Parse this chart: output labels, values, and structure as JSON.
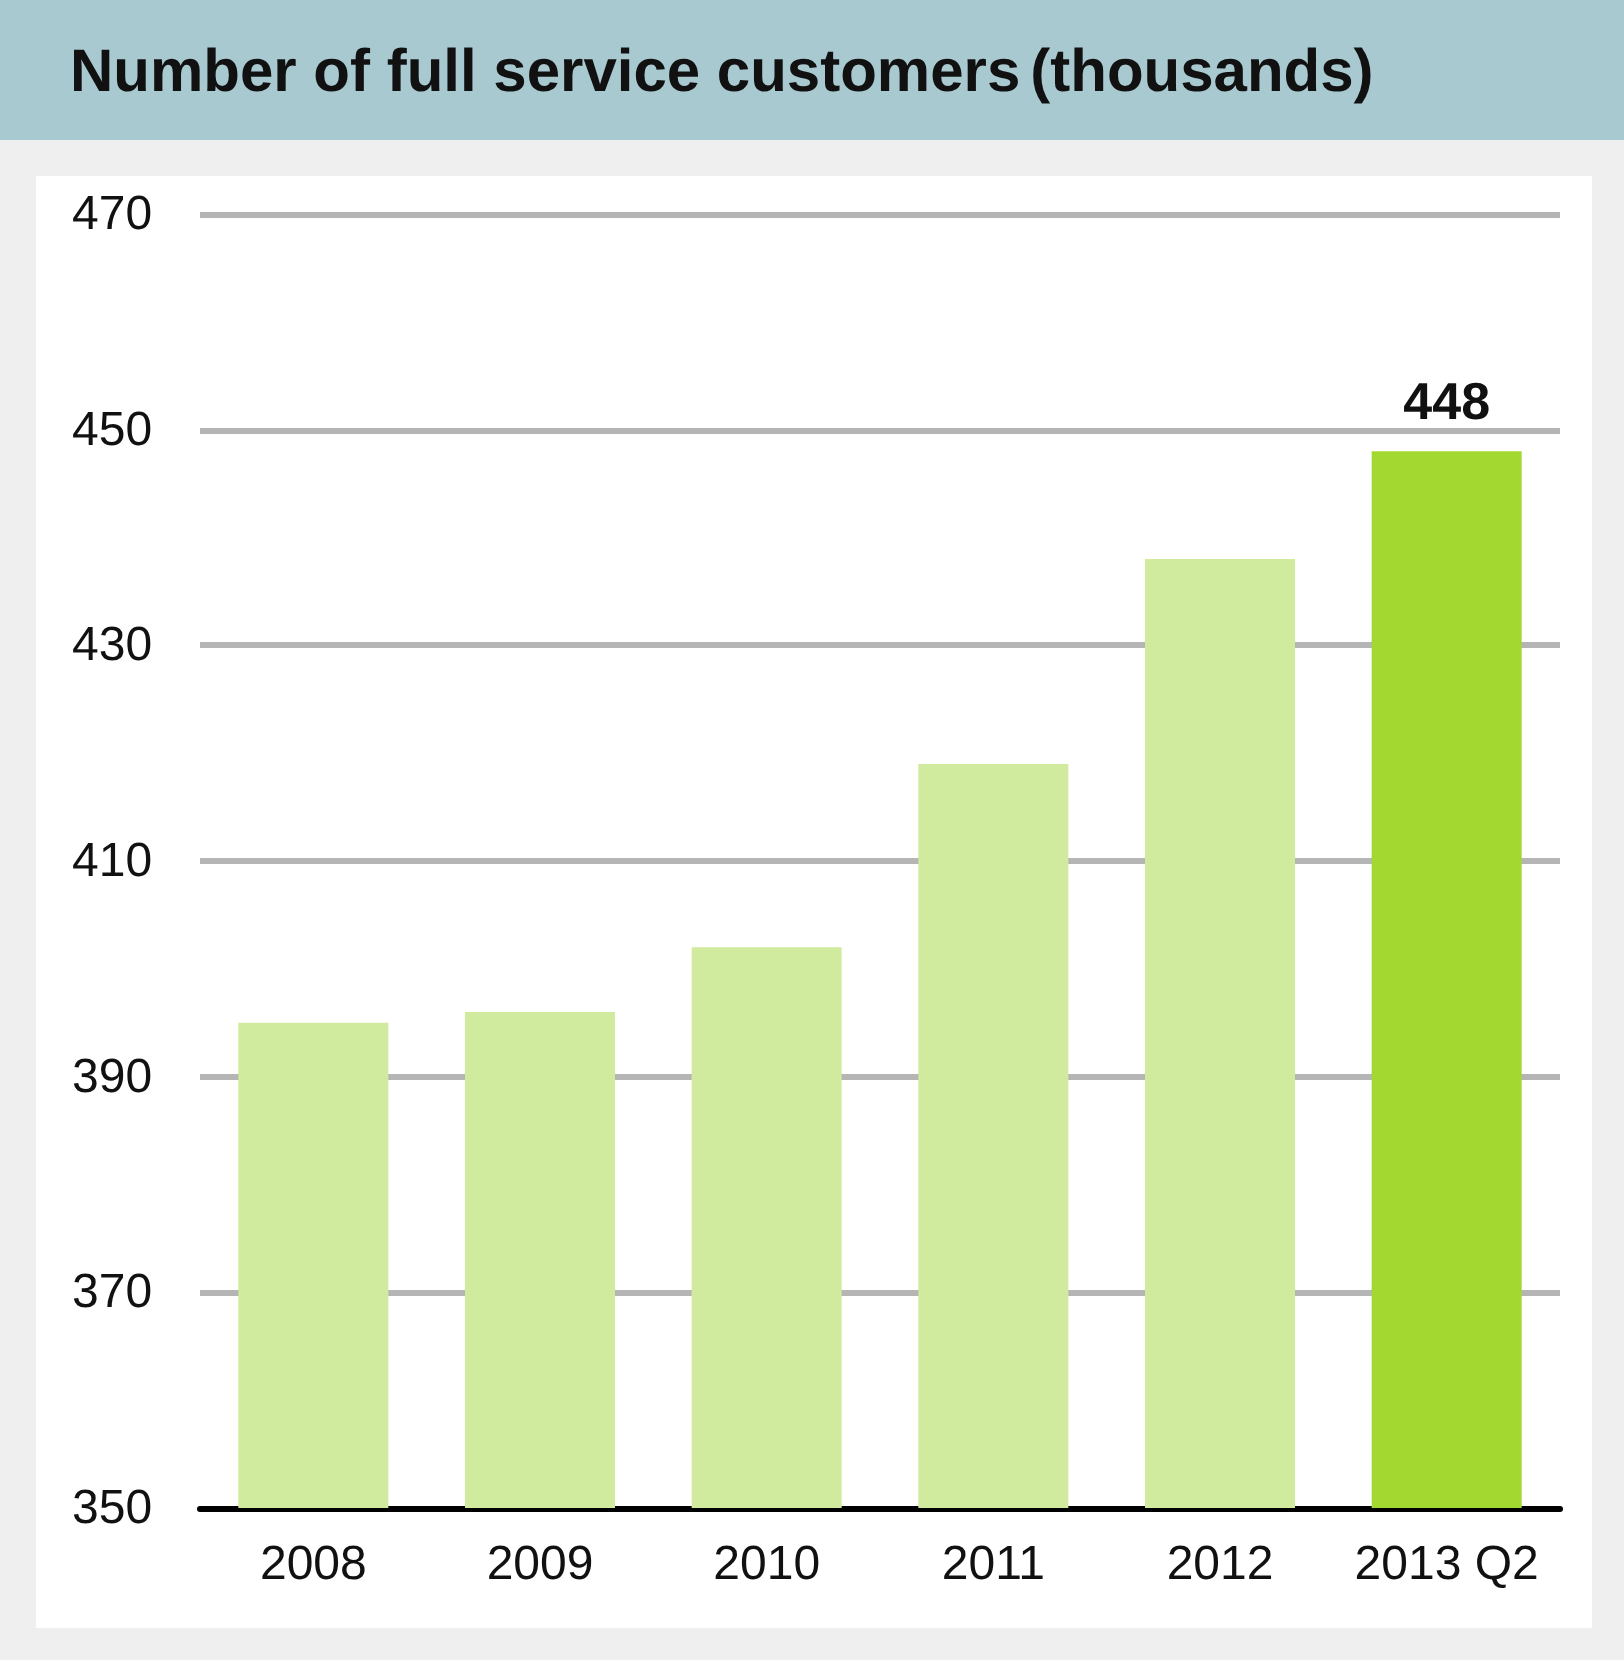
{
  "chart_data": {
    "type": "bar",
    "title": "Number of full service customers",
    "subtitle": "(thousands)",
    "categories": [
      "2008",
      "2009",
      "2010",
      "2011",
      "2012",
      "2013 Q2"
    ],
    "values": [
      395,
      396,
      402,
      419,
      438,
      448
    ],
    "colors": [
      "#d1eb9e",
      "#d1eb9e",
      "#d1eb9e",
      "#d1eb9e",
      "#d1eb9e",
      "#a3d831"
    ],
    "value_labels": [
      null,
      null,
      null,
      null,
      null,
      "448"
    ],
    "ylim": [
      350,
      470
    ],
    "yticks": [
      350,
      370,
      390,
      410,
      430,
      450,
      470
    ],
    "grid": "y"
  }
}
